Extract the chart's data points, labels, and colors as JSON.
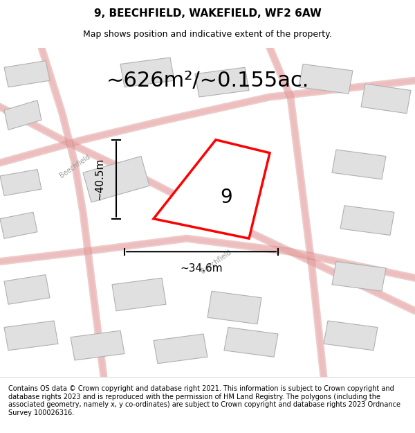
{
  "title": "9, BEECHFIELD, WAKEFIELD, WF2 6AW",
  "subtitle": "Map shows position and indicative extent of the property.",
  "area_label": "~626m²/~0.155ac.",
  "property_number": "9",
  "dim_height": "~40.5m",
  "dim_width": "~34.6m",
  "footer": "Contains OS data © Crown copyright and database right 2021. This information is subject to Crown copyright and database rights 2023 and is reproduced with the permission of HM Land Registry. The polygons (including the associated geometry, namely x, y co-ordinates) are subject to Crown copyright and database rights 2023 Ordnance Survey 100026316.",
  "bg_color": "#f5f5f5",
  "map_bg": "#f8f8f8",
  "road_color_light": "#f0b0b0",
  "road_color_outline": "#d08080",
  "building_color": "#e0e0e0",
  "building_outline": "#b0b0b0",
  "property_color": "red",
  "property_fill": "white",
  "dim_line_color": "black",
  "title_fontsize": 11,
  "subtitle_fontsize": 9,
  "area_fontsize": 22,
  "number_fontsize": 20,
  "dim_fontsize": 11,
  "footer_fontsize": 7
}
